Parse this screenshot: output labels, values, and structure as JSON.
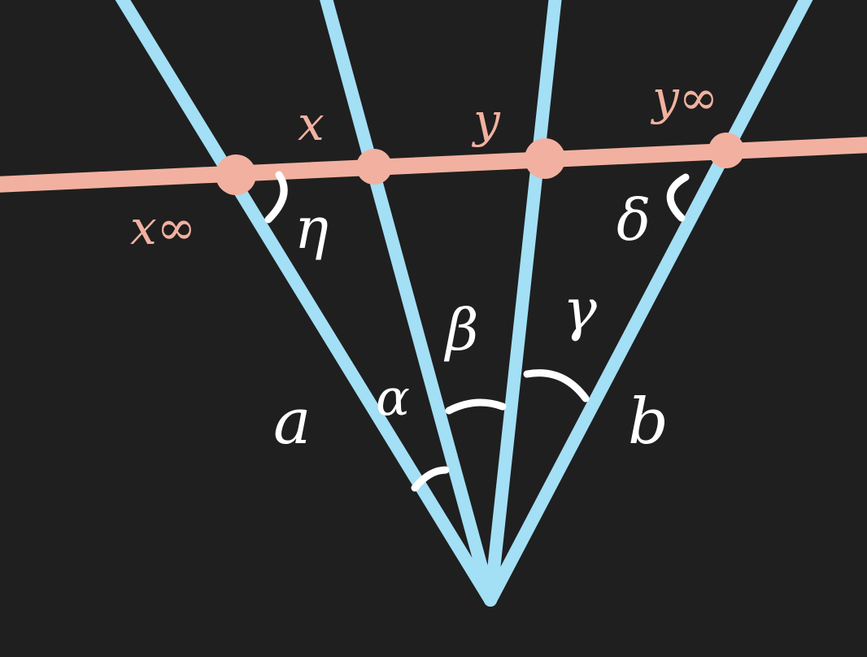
{
  "colors": {
    "background": "#1f1f1f",
    "rays": "#a3dff5",
    "transversal": "#f2b1a0",
    "annotations": "#ffffff"
  },
  "labels": {
    "x_inf": "x∞",
    "x": "x",
    "y": "y",
    "y_inf": "y∞",
    "eta": "η",
    "delta": "δ",
    "beta": "β",
    "gamma": "γ",
    "alpha": "α",
    "a": "a",
    "b": "b"
  }
}
